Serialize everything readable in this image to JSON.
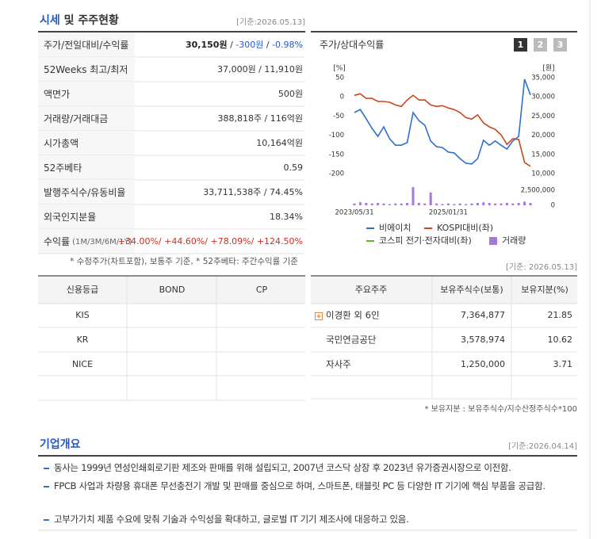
{
  "header": {
    "title_main": "시세",
    "title_rest": " 및 주주현황",
    "date": "[기준:2026.05.13]"
  },
  "quote": {
    "rows": [
      {
        "label": "주가/전일대비/수익률",
        "parts": [
          {
            "text": "30,150원",
            "tone": "bold"
          },
          {
            "text": " / "
          },
          {
            "text": "-300원",
            "tone": "down"
          },
          {
            "text": " / "
          },
          {
            "text": "-0.98%",
            "tone": "down"
          }
        ]
      },
      {
        "label": "52Weeks 최고/최저",
        "parts": [
          {
            "text": "37,000원 / 11,910원"
          }
        ]
      },
      {
        "label": "액면가",
        "parts": [
          {
            "text": "500원"
          }
        ]
      },
      {
        "label": "거래량/거래대금",
        "parts": [
          {
            "text": "388,818주 / 116억원"
          }
        ]
      },
      {
        "label": "시가총액",
        "parts": [
          {
            "text": "10,164억원"
          }
        ]
      },
      {
        "label": "52주베타",
        "parts": [
          {
            "text": "0.59"
          }
        ]
      },
      {
        "label": "발행주식수/유동비율",
        "parts": [
          {
            "text": "33,711,538주 / 74.45%"
          }
        ]
      },
      {
        "label": "외국인지분율",
        "parts": [
          {
            "text": "18.34%"
          }
        ]
      },
      {
        "label": "수익률",
        "label_sub": "(1M/3M/6M/1Y)",
        "parts": [
          {
            "text": "+34.00%/ +44.60%/ +78.09%/ +124.50%",
            "tone": "up"
          }
        ]
      }
    ],
    "note": "* 수정주가(차트포함), 보통주 기준, * 52주베타: 주간수익률 기준"
  },
  "chart": {
    "type": "line",
    "title": "주가/상대수익률",
    "tabs": [
      "1",
      "2",
      "3"
    ],
    "active_tab": 0,
    "y_label": "[%]",
    "y2_label": "[원]",
    "categories": [
      "2023/05/31",
      null,
      null,
      null,
      null,
      null,
      null,
      null,
      null,
      null,
      null,
      null,
      null,
      null,
      null,
      null,
      "2025/01/31",
      null,
      null,
      null,
      null,
      null,
      null,
      null,
      null,
      null,
      null,
      null,
      null,
      null,
      null
    ],
    "ylim": [
      -200,
      50
    ],
    "yticks": [
      50,
      0,
      -50,
      -100,
      -150,
      -200
    ],
    "y2lim": [
      10000,
      35000
    ],
    "y2ticks": [
      {
        "value": 35000,
        "label": "35,000"
      },
      {
        "value": 30000,
        "label": "30,000"
      },
      {
        "value": 25000,
        "label": "25,000"
      },
      {
        "value": 20000,
        "label": "20,000"
      },
      {
        "value": 15000,
        "label": "15,000"
      },
      {
        "value": 10000,
        "label": "10,000"
      }
    ],
    "volume_lim": [
      0,
      3000000
    ],
    "volume_ticks": [
      {
        "value": 2500000,
        "label": "2,500,000"
      },
      0
    ],
    "series": [
      {
        "name": "비에이치",
        "color": "#2f6fcb",
        "axis": "y2",
        "values": [
          25900,
          26700,
          24300,
          21800,
          19700,
          22200,
          19100,
          17400,
          17400,
          18100,
          25900,
          23800,
          22600,
          18500,
          17000,
          16800,
          15600,
          15400,
          13900,
          12700,
          12500,
          13900,
          18700,
          17400,
          18500,
          17400,
          16400,
          18500,
          19700,
          34600,
          30500
        ]
      },
      {
        "name": "KOSPI대비(좌)",
        "color": "#c9471c",
        "values": [
          4,
          8,
          -4,
          -4,
          -12,
          -12,
          -14,
          -21,
          -25,
          -8,
          4,
          -8,
          -8,
          -21,
          -25,
          -23,
          -29,
          -33,
          -41,
          -54,
          -58,
          -47,
          -68,
          -78,
          -85,
          -99,
          -124,
          -109,
          -111,
          -171,
          -181
        ]
      },
      {
        "name": "코스피 전기·전자대비(좌)",
        "color": "#5bb72e",
        "values": [
          null,
          null,
          null,
          null,
          null,
          null,
          null,
          null,
          null,
          null,
          null,
          null,
          null,
          null,
          null,
          null,
          null,
          null,
          null,
          null,
          null,
          null,
          null,
          null,
          null,
          null,
          null,
          null,
          null,
          null,
          null
        ]
      },
      {
        "name": "거래량",
        "color": "#a27bd8",
        "type": "bar",
        "axis": "volume",
        "values": [
          300000,
          500000,
          400000,
          300000,
          400000,
          300000,
          200000,
          300000,
          300000,
          400000,
          3000000,
          400000,
          300000,
          2100000,
          300000,
          200000,
          300000,
          200000,
          300000,
          200000,
          300000,
          400000,
          500000,
          400000,
          300000,
          300000,
          400000,
          300000,
          400000,
          600000,
          400000
        ]
      }
    ]
  },
  "credit": {
    "headers": [
      "신용등급",
      "BOND",
      "CP"
    ],
    "agencies": [
      "KIS",
      "KR",
      "NICE"
    ]
  },
  "shareholders": {
    "date": "[기준: 2026.05.13]",
    "headers": [
      "주요주주",
      "보유주식수(보통)",
      "보유지분(%)"
    ],
    "rows": [
      [
        "이경환 외 6인",
        "7,364,877",
        "21.85"
      ],
      [
        "국민연금공단",
        "3,578,974",
        "10.62"
      ],
      [
        "자사주",
        "1,250,000",
        "3.71"
      ]
    ],
    "note": "* 보유지분 : 보유주식수/지수산정주식수*100"
  },
  "overview": {
    "title": "기업개요",
    "date": "[기준:2026.04.14]",
    "items": [
      "동사는 1999년 연성인쇄회로기판 제조와 판매를 위해 설립되고, 2007년 코스닥 상장 후 2023년 유가증권시장으로 이전함.",
      "FPCB 사업과 차량용 휴대폰 무선충전기 개발 및 판매를 중심으로 하며, 스마트폰, 태블릿 PC 등 다양한 IT 기기에 핵심 부품을 공급함.",
      "고부가가치 제품 수요에 맞춰 기술과 수익성을 확대하고, 글로벌 IT 기기 제조사에 대응하고 있음."
    ]
  }
}
